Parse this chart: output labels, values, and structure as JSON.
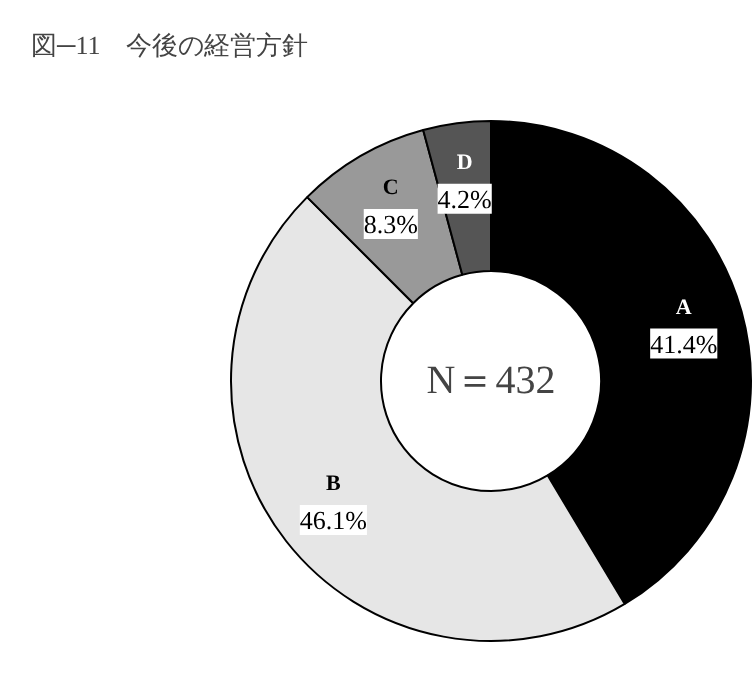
{
  "chart_data": {
    "type": "donut",
    "title": "図─11　今後の経営方針",
    "categories": [
      "A",
      "B",
      "C",
      "D"
    ],
    "values": [
      41.4,
      46.1,
      8.3,
      4.2
    ],
    "value_labels": [
      "41.4%",
      "46.1%",
      "8.3%",
      "4.2%"
    ],
    "colors": [
      "#000000",
      "#e6e6e6",
      "#999999",
      "#555555"
    ],
    "annotations": [
      "N＝432"
    ]
  }
}
